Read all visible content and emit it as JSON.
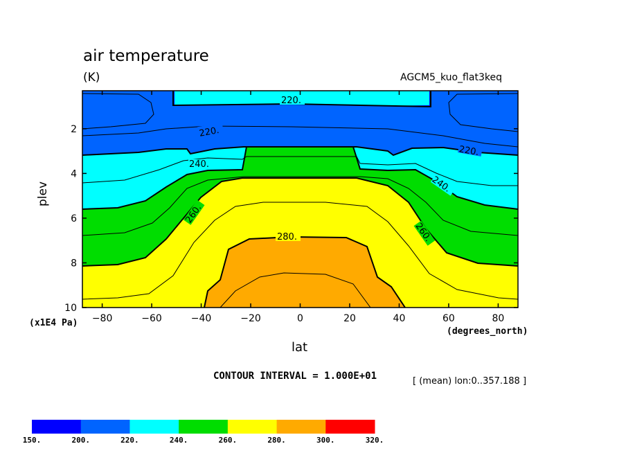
{
  "title": "air temperature",
  "units": "(K)",
  "dataset": "AGCM5_kuo_flat3keq",
  "contour_interval_label": "CONTOUR INTERVAL = 1.000E+01",
  "mean_label": "[ (mean) lon:0..357.188 ]",
  "colors": {
    "150-200": "#0000ff",
    "200-220": "#0064ff",
    "220-240": "#00ffff",
    "240-260": "#00dd00",
    "260-280": "#ffff00",
    "280-300": "#ffaa00",
    "300-320": "#ff0000"
  },
  "chart_data": {
    "type": "heatmap",
    "variable": "air temperature",
    "units": "K",
    "xlabel": "lat",
    "xunit": "(degrees_north)",
    "ylabel": "plev",
    "yunit": "(x1E4 Pa)",
    "xlim": [
      -88,
      88
    ],
    "ylim": [
      10,
      0.3
    ],
    "x_ticks": [
      -80,
      -60,
      -40,
      -20,
      0,
      20,
      40,
      60,
      80
    ],
    "y_ticks": [
      2,
      4,
      6,
      8,
      10
    ],
    "contour_interval": 10,
    "contour_labels": [
      "220.",
      "220.",
      "220.",
      "240.",
      "240.",
      "260.",
      "260.",
      "280."
    ],
    "colorbar_levels": [
      "150.",
      "200.",
      "220.",
      "240.",
      "260.",
      "280.",
      "300.",
      "320."
    ],
    "colorbar_colors": [
      "#0000ff",
      "#0064ff",
      "#00ffff",
      "#00dd00",
      "#ffff00",
      "#ffaa00",
      "#ff0000"
    ]
  }
}
